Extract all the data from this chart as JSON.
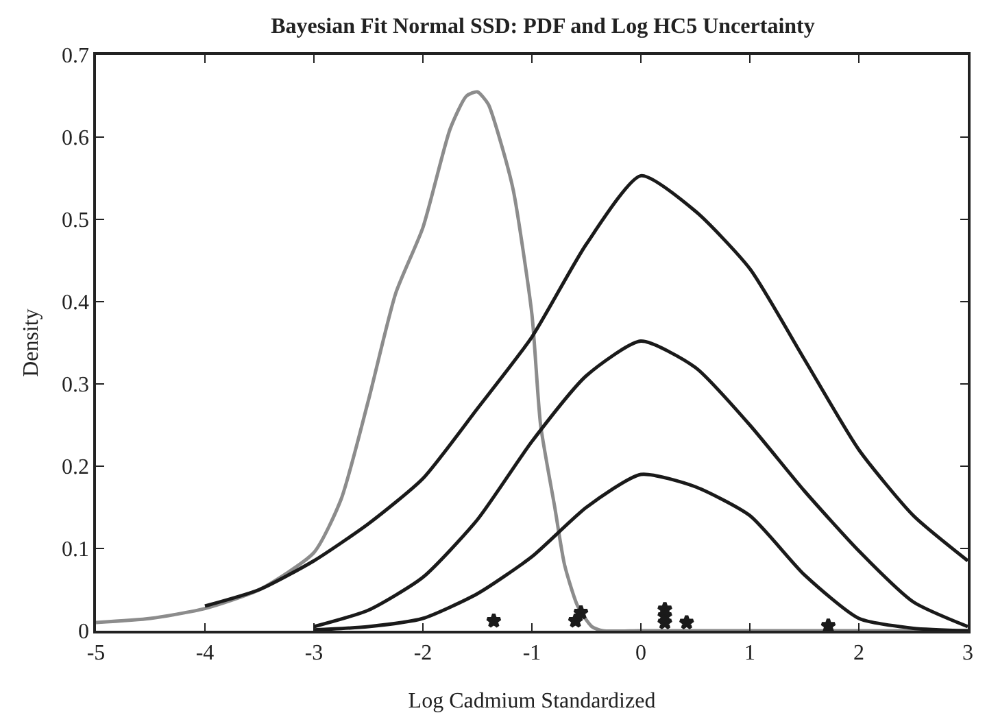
{
  "chart_data": {
    "type": "line",
    "title": "Bayesian Fit Normal SSD: PDF and Log HC5 Uncertainty",
    "xlabel": "Log Cadmium Standardized",
    "ylabel": "Density",
    "xlim": [
      -5,
      3
    ],
    "xticks": [
      -5,
      -4,
      -3,
      -2,
      -1,
      0,
      1,
      2,
      3
    ],
    "ylim": [
      0,
      0.7
    ],
    "yticks": [
      0,
      0.1,
      0.2,
      0.3,
      0.4,
      0.5,
      0.6,
      0.7
    ],
    "grid": false,
    "marker": "none",
    "line_style": "solid",
    "series": [
      {
        "color": "#8c8c8c",
        "x": [
          -5,
          -4.5,
          -4,
          -3.5,
          -3,
          -2.75,
          -2.5,
          -2.25,
          -2,
          -1.75,
          -1.6,
          -1.5,
          -1.4,
          -1.3,
          -1.17,
          -1,
          -0.92,
          -0.79,
          -0.7,
          -0.58,
          -0.45,
          -0.35,
          0,
          1,
          2,
          3
        ],
        "values": [
          0.01,
          0.015,
          0.027,
          0.05,
          0.095,
          0.16,
          0.28,
          0.41,
          0.49,
          0.61,
          0.65,
          0.655,
          0.64,
          0.6,
          0.535,
          0.385,
          0.25,
          0.15,
          0.08,
          0.03,
          0.005,
          0,
          0,
          0,
          0,
          0
        ]
      },
      {
        "color": "#1a1a1a",
        "x": [
          -4,
          -3.5,
          -3,
          -2.5,
          -2,
          -1.5,
          -1,
          -0.5,
          0,
          0.5,
          1,
          1.5,
          2,
          2.5,
          3
        ],
        "values": [
          0.03,
          0.05,
          0.085,
          0.13,
          0.185,
          0.27,
          0.357,
          0.47,
          0.553,
          0.51,
          0.44,
          0.33,
          0.22,
          0.14,
          0.085
        ]
      },
      {
        "color": "#1a1a1a",
        "x": [
          -3,
          -2.5,
          -2,
          -1.5,
          -1,
          -0.5,
          0,
          0.5,
          1,
          1.5,
          2,
          2.5,
          3
        ],
        "values": [
          0.005,
          0.025,
          0.065,
          0.135,
          0.23,
          0.31,
          0.352,
          0.32,
          0.25,
          0.17,
          0.097,
          0.035,
          0.005
        ]
      },
      {
        "color": "#1a1a1a",
        "x": [
          -3,
          -2.5,
          -2,
          -1.5,
          -1,
          -0.5,
          0,
          0.5,
          1,
          1.5,
          2,
          2.5,
          3
        ],
        "values": [
          0.001,
          0.005,
          0.015,
          0.045,
          0.09,
          0.15,
          0.19,
          0.175,
          0.14,
          0.068,
          0.015,
          0.003,
          0
        ]
      },
      {
        "type": "scatter",
        "marker": "star",
        "color": "#1a1a1a",
        "x": [
          -1.35,
          -0.6,
          -0.55,
          0.22,
          0.22,
          0.22,
          0.42,
          1.72
        ],
        "values": [
          0.012,
          0.012,
          0.022,
          0.01,
          0.018,
          0.026,
          0.01,
          0.006
        ]
      }
    ]
  }
}
